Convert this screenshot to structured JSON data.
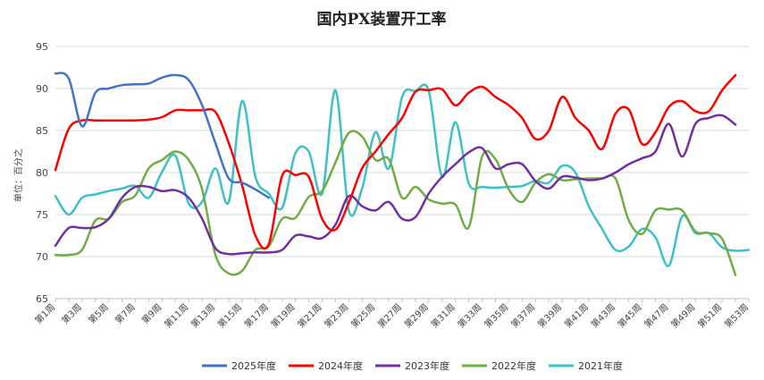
{
  "chart_data": {
    "type": "line",
    "title": "国内PX装置开工率",
    "ylabel": "单位：百分之",
    "xlabel": "",
    "ylim": [
      65,
      95
    ],
    "yticks": [
      65,
      70,
      75,
      80,
      85,
      90,
      95
    ],
    "grid": "horizontal",
    "legend_position": "bottom",
    "x": [
      1,
      2,
      3,
      4,
      5,
      6,
      7,
      8,
      9,
      10,
      11,
      12,
      13,
      14,
      15,
      16,
      17,
      18,
      19,
      20,
      21,
      22,
      23,
      24,
      25,
      26,
      27,
      28,
      29,
      30,
      31,
      32,
      33,
      34,
      35,
      36,
      37,
      38,
      39,
      40,
      41,
      42,
      43,
      44,
      45,
      46,
      47,
      48,
      49,
      50,
      51,
      52,
      53
    ],
    "xtick_labels": [
      "第1周",
      "第3周",
      "第5周",
      "第7周",
      "第9周",
      "第11周",
      "第13周",
      "第15周",
      "第17周",
      "第19周",
      "第21周",
      "第23周",
      "第25周",
      "第27周",
      "第29周",
      "第31周",
      "第33周",
      "第35周",
      "第37周",
      "第39周",
      "第41周",
      "第43周",
      "第45周",
      "第47周",
      "第49周",
      "第51周",
      "第53周"
    ],
    "series": [
      {
        "name": "2025年度",
        "color": "#4472C4",
        "values": [
          91.8,
          91.2,
          85.5,
          89.5,
          90.0,
          90.4,
          90.5,
          90.6,
          91.3,
          91.6,
          91.0,
          88.0,
          83.5,
          79.3,
          78.8,
          78.0,
          77.0,
          null,
          null,
          null,
          null,
          null,
          null,
          null,
          null,
          null,
          null,
          null,
          null,
          null,
          null,
          null,
          null,
          null,
          null,
          null,
          null,
          null,
          null,
          null,
          null,
          null,
          null,
          null,
          null,
          null,
          null,
          null,
          null,
          null,
          null,
          null,
          null
        ]
      },
      {
        "name": "2024年度",
        "color": "#FF0000",
        "values": [
          80.3,
          85.2,
          86.2,
          86.2,
          86.2,
          86.2,
          86.2,
          86.3,
          86.6,
          87.4,
          87.4,
          87.4,
          87.2,
          83.5,
          78.5,
          72.5,
          71.5,
          79.6,
          79.7,
          79.5,
          74.5,
          73.2,
          76.4,
          80.5,
          82.5,
          84.6,
          86.5,
          89.6,
          89.8,
          89.9,
          88.0,
          89.5,
          90.2,
          89.0,
          88.0,
          86.5,
          84.0,
          85.0,
          89.0,
          86.5,
          85.0,
          82.8,
          87.0,
          87.5,
          83.4,
          84.8,
          87.8,
          88.5,
          87.3,
          87.3,
          89.8,
          91.6,
          null
        ]
      },
      {
        "name": "2023年度",
        "color": "#7030A0",
        "values": [
          71.3,
          73.4,
          73.4,
          73.5,
          74.5,
          77.0,
          78.3,
          78.3,
          77.8,
          77.9,
          77.0,
          74.5,
          71.0,
          70.3,
          70.4,
          70.5,
          70.5,
          70.8,
          72.5,
          72.4,
          72.2,
          73.8,
          77.2,
          76.0,
          75.5,
          76.5,
          74.5,
          74.7,
          77.5,
          79.5,
          81.0,
          82.4,
          82.9,
          80.5,
          81.0,
          81.0,
          79.0,
          78.1,
          79.5,
          79.4,
          79.1,
          79.3,
          80.0,
          81.0,
          81.7,
          82.5,
          85.8,
          81.9,
          85.8,
          86.5,
          86.8,
          85.7,
          null
        ]
      },
      {
        "name": "2022年度",
        "color": "#70AD47",
        "values": [
          70.2,
          70.2,
          70.8,
          74.3,
          74.5,
          76.5,
          77.3,
          80.5,
          81.5,
          82.5,
          81.5,
          78.0,
          70.2,
          68.0,
          68.3,
          70.8,
          71.2,
          74.5,
          74.6,
          77.1,
          77.8,
          81.2,
          84.7,
          84.3,
          81.5,
          81.6,
          77.0,
          78.3,
          76.8,
          76.3,
          76.2,
          73.5,
          81.9,
          81.6,
          78.0,
          76.5,
          78.8,
          79.8,
          79.1,
          79.2,
          79.3,
          79.3,
          79.3,
          74.3,
          72.7,
          75.5,
          75.6,
          75.5,
          73.0,
          72.8,
          72.1,
          67.8,
          null
        ]
      },
      {
        "name": "2021年度",
        "color": "#3EC1C6",
        "values": [
          77.2,
          75.0,
          77.0,
          77.4,
          77.8,
          78.1,
          78.4,
          77.0,
          80.1,
          82.0,
          76.3,
          76.5,
          80.5,
          76.5,
          88.5,
          79.5,
          77.5,
          75.8,
          82.3,
          82.5,
          77.5,
          89.8,
          75.5,
          78.1,
          84.8,
          80.5,
          89.0,
          89.7,
          89.7,
          79.5,
          86.0,
          78.7,
          78.3,
          78.2,
          78.3,
          78.4,
          79.0,
          78.8,
          80.8,
          80.0,
          76.0,
          73.3,
          70.8,
          71.2,
          73.3,
          72.3,
          68.9,
          74.8,
          72.8,
          72.8,
          71.1,
          70.7,
          70.8
        ]
      }
    ]
  }
}
